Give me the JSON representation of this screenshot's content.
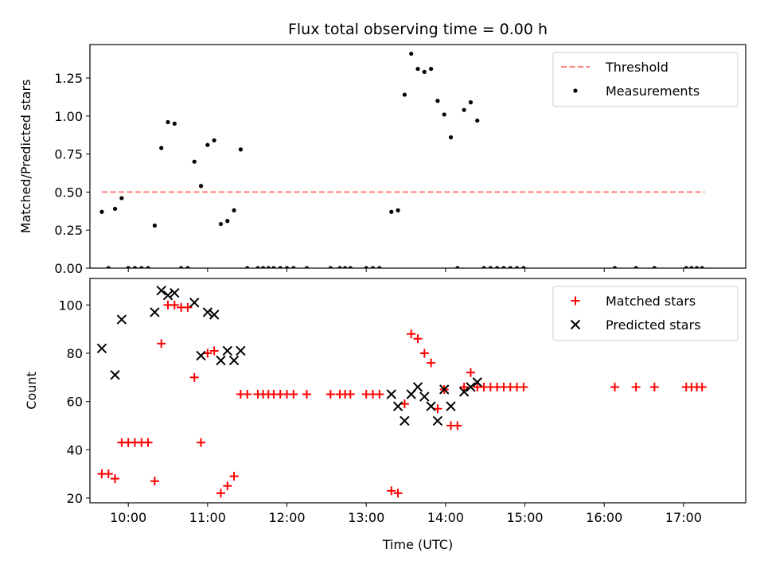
{
  "chart_data": {
    "type": "scatter",
    "title": "Flux total observing time = 0.00 h",
    "xlabel": "Time (UTC)",
    "x_ticks": [
      "10:00",
      "11:00",
      "12:00",
      "13:00",
      "14:00",
      "15:00",
      "16:00",
      "17:00"
    ],
    "xlim": [
      "09:31",
      "17:47"
    ],
    "panels": [
      {
        "ylabel": "Matched/Predicted stars",
        "ylim": [
          0,
          1.47
        ],
        "y_ticks": [
          "0.00",
          "0.25",
          "0.50",
          "0.75",
          "1.00",
          "1.25"
        ],
        "legend_position": "top-right",
        "series": [
          {
            "name": "Threshold",
            "type": "dashed-line",
            "color": "#ff7f7f",
            "points": [
              [
                "09:40",
                0.5
              ],
              [
                "17:16",
                0.5
              ]
            ]
          },
          {
            "name": "Measurements",
            "type": "dot",
            "color": "#000000",
            "points": [
              [
                "09:40",
                0.37
              ],
              [
                "09:45",
                0.0
              ],
              [
                "09:50",
                0.39
              ],
              [
                "09:55",
                0.46
              ],
              [
                "10:00",
                0.0
              ],
              [
                "10:05",
                0.0
              ],
              [
                "10:10",
                0.0
              ],
              [
                "10:15",
                0.0
              ],
              [
                "10:20",
                0.28
              ],
              [
                "10:25",
                0.79
              ],
              [
                "10:30",
                0.96
              ],
              [
                "10:35",
                0.95
              ],
              [
                "10:40",
                0.0
              ],
              [
                "10:45",
                0.0
              ],
              [
                "10:50",
                0.7
              ],
              [
                "10:55",
                0.54
              ],
              [
                "11:00",
                0.81
              ],
              [
                "11:05",
                0.84
              ],
              [
                "11:10",
                0.29
              ],
              [
                "11:15",
                0.31
              ],
              [
                "11:20",
                0.38
              ],
              [
                "11:25",
                0.78
              ],
              [
                "11:30",
                0.0
              ],
              [
                "11:38",
                0.0
              ],
              [
                "11:42",
                0.0
              ],
              [
                "11:46",
                0.0
              ],
              [
                "11:50",
                0.0
              ],
              [
                "11:55",
                0.0
              ],
              [
                "12:00",
                0.0
              ],
              [
                "12:05",
                0.0
              ],
              [
                "12:15",
                0.0
              ],
              [
                "12:33",
                0.0
              ],
              [
                "12:40",
                0.0
              ],
              [
                "12:44",
                0.0
              ],
              [
                "12:48",
                0.0
              ],
              [
                "13:00",
                0.0
              ],
              [
                "13:05",
                0.0
              ],
              [
                "13:10",
                0.0
              ],
              [
                "13:19",
                0.37
              ],
              [
                "13:24",
                0.38
              ],
              [
                "13:29",
                1.14
              ],
              [
                "13:34",
                1.41
              ],
              [
                "13:39",
                1.31
              ],
              [
                "13:44",
                1.29
              ],
              [
                "13:49",
                1.31
              ],
              [
                "13:54",
                1.1
              ],
              [
                "13:59",
                1.01
              ],
              [
                "14:04",
                0.86
              ],
              [
                "14:09",
                0.0
              ],
              [
                "14:14",
                1.04
              ],
              [
                "14:19",
                1.09
              ],
              [
                "14:24",
                0.97
              ],
              [
                "14:29",
                0.0
              ],
              [
                "14:34",
                0.0
              ],
              [
                "14:39",
                0.0
              ],
              [
                "14:44",
                0.0
              ],
              [
                "14:49",
                0.0
              ],
              [
                "14:54",
                0.0
              ],
              [
                "14:59",
                0.0
              ],
              [
                "16:08",
                0.0
              ],
              [
                "16:24",
                0.0
              ],
              [
                "16:38",
                0.0
              ],
              [
                "17:02",
                0.0
              ],
              [
                "17:06",
                0.0
              ],
              [
                "17:10",
                0.0
              ],
              [
                "17:14",
                0.0
              ]
            ]
          }
        ]
      },
      {
        "ylabel": "Count",
        "ylim": [
          18,
          111
        ],
        "y_ticks": [
          "20",
          "40",
          "60",
          "80",
          "100"
        ],
        "legend_position": "top-right",
        "series": [
          {
            "name": "Matched stars",
            "type": "plus",
            "color": "#ff0000",
            "points": [
              [
                "09:40",
                30
              ],
              [
                "09:45",
                30
              ],
              [
                "09:50",
                28
              ],
              [
                "09:55",
                43
              ],
              [
                "10:00",
                43
              ],
              [
                "10:05",
                43
              ],
              [
                "10:10",
                43
              ],
              [
                "10:15",
                43
              ],
              [
                "10:20",
                27
              ],
              [
                "10:25",
                84
              ],
              [
                "10:30",
                100
              ],
              [
                "10:35",
                100
              ],
              [
                "10:40",
                99
              ],
              [
                "10:45",
                99
              ],
              [
                "10:50",
                70
              ],
              [
                "10:55",
                43
              ],
              [
                "11:00",
                80
              ],
              [
                "11:05",
                81
              ],
              [
                "11:10",
                22
              ],
              [
                "11:15",
                25
              ],
              [
                "11:20",
                29
              ],
              [
                "11:25",
                63
              ],
              [
                "11:30",
                63
              ],
              [
                "11:38",
                63
              ],
              [
                "11:42",
                63
              ],
              [
                "11:46",
                63
              ],
              [
                "11:50",
                63
              ],
              [
                "11:55",
                63
              ],
              [
                "12:00",
                63
              ],
              [
                "12:05",
                63
              ],
              [
                "12:15",
                63
              ],
              [
                "12:33",
                63
              ],
              [
                "12:40",
                63
              ],
              [
                "12:44",
                63
              ],
              [
                "12:48",
                63
              ],
              [
                "13:00",
                63
              ],
              [
                "13:05",
                63
              ],
              [
                "13:10",
                63
              ],
              [
                "13:19",
                23
              ],
              [
                "13:24",
                22
              ],
              [
                "13:29",
                59
              ],
              [
                "13:34",
                88
              ],
              [
                "13:39",
                86
              ],
              [
                "13:44",
                80
              ],
              [
                "13:49",
                76
              ],
              [
                "13:54",
                57
              ],
              [
                "13:59",
                65
              ],
              [
                "14:04",
                50
              ],
              [
                "14:09",
                50
              ],
              [
                "14:14",
                66
              ],
              [
                "14:19",
                72
              ],
              [
                "14:24",
                66
              ],
              [
                "14:29",
                66
              ],
              [
                "14:34",
                66
              ],
              [
                "14:39",
                66
              ],
              [
                "14:44",
                66
              ],
              [
                "14:49",
                66
              ],
              [
                "14:54",
                66
              ],
              [
                "14:59",
                66
              ],
              [
                "16:08",
                66
              ],
              [
                "16:24",
                66
              ],
              [
                "16:38",
                66
              ],
              [
                "17:02",
                66
              ],
              [
                "17:06",
                66
              ],
              [
                "17:10",
                66
              ],
              [
                "17:14",
                66
              ]
            ]
          },
          {
            "name": "Predicted stars",
            "type": "x",
            "color": "#000000",
            "points": [
              [
                "09:40",
                82
              ],
              [
                "09:50",
                71
              ],
              [
                "09:55",
                94
              ],
              [
                "10:20",
                97
              ],
              [
                "10:25",
                106
              ],
              [
                "10:30",
                104
              ],
              [
                "10:35",
                105
              ],
              [
                "10:50",
                101
              ],
              [
                "10:55",
                79
              ],
              [
                "11:00",
                97
              ],
              [
                "11:05",
                96
              ],
              [
                "11:10",
                77
              ],
              [
                "11:15",
                81
              ],
              [
                "11:20",
                77
              ],
              [
                "11:25",
                81
              ],
              [
                "13:19",
                63
              ],
              [
                "13:24",
                58
              ],
              [
                "13:29",
                52
              ],
              [
                "13:34",
                63
              ],
              [
                "13:39",
                66
              ],
              [
                "13:44",
                62
              ],
              [
                "13:49",
                58
              ],
              [
                "13:54",
                52
              ],
              [
                "13:59",
                65
              ],
              [
                "14:04",
                58
              ],
              [
                "14:14",
                64
              ],
              [
                "14:19",
                66
              ],
              [
                "14:24",
                68
              ]
            ]
          }
        ]
      }
    ]
  }
}
